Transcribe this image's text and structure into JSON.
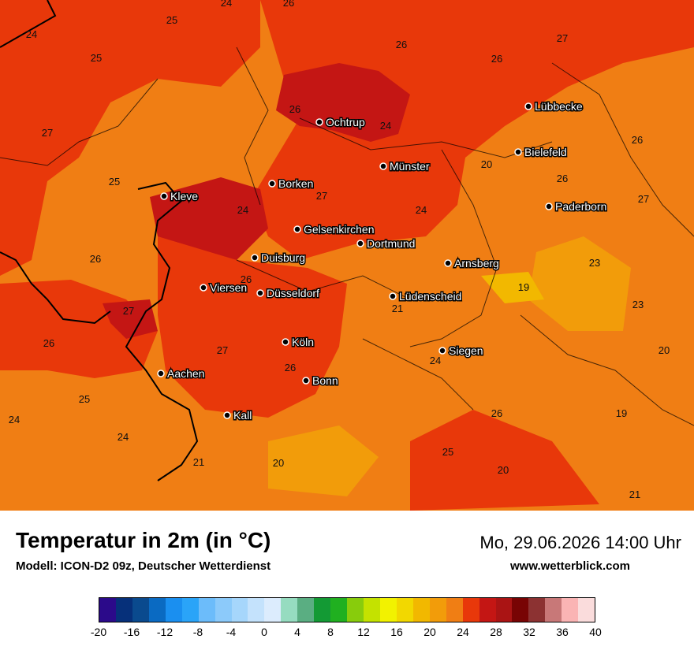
{
  "header": {
    "title": "Temperatur in 2m (in °C)",
    "model": "Modell: ICON-D2 09z, Deutscher Wetterdienst",
    "datetime": "Mo, 29.06.2026 14:00 Uhr",
    "website": "www.wetterblick.com"
  },
  "map": {
    "cities": [
      {
        "name": "Ochtrup"
      },
      {
        "name": "Lübbecke"
      },
      {
        "name": "Bielefeld"
      },
      {
        "name": "Münster"
      },
      {
        "name": "Borken"
      },
      {
        "name": "Kleve"
      },
      {
        "name": "Paderborn"
      },
      {
        "name": "Gelsenkirchen"
      },
      {
        "name": "Dortmund"
      },
      {
        "name": "Duisburg"
      },
      {
        "name": "Arnsberg"
      },
      {
        "name": "Viersen"
      },
      {
        "name": "Düsseldorf"
      },
      {
        "name": "Lüdenscheid"
      },
      {
        "name": "Köln"
      },
      {
        "name": "Siegen"
      },
      {
        "name": "Aachen"
      },
      {
        "name": "Bonn"
      },
      {
        "name": "Kall"
      }
    ],
    "temperature_labels": [
      "24",
      "26",
      "24",
      "25",
      "25",
      "26",
      "27",
      "26",
      "27",
      "26",
      "24",
      "25",
      "20",
      "26",
      "27",
      "24",
      "26",
      "27",
      "24",
      "26",
      "23",
      "26",
      "19",
      "23",
      "27",
      "21",
      "26",
      "27",
      "20",
      "24",
      "26",
      "25",
      "19",
      "24",
      "24",
      "21",
      "20",
      "26",
      "25",
      "20",
      "21"
    ]
  },
  "legend": {
    "unit": "°C",
    "colors": [
      "#2b0a8a",
      "#06307a",
      "#0a4a8e",
      "#0a6ac2",
      "#1a8ff0",
      "#2aa4f8",
      "#6cbcfa",
      "#8ccafa",
      "#a6d6fb",
      "#c4e2fc",
      "#dcecfd",
      "#96dcc0",
      "#5aae82",
      "#139a34",
      "#20b020",
      "#88cc0c",
      "#c4e200",
      "#f2f200",
      "#f2d800",
      "#f2b800",
      "#f29c0a",
      "#f07e14",
      "#e8380a",
      "#c41614",
      "#aa1414",
      "#780404",
      "#8c3232",
      "#c87878",
      "#fab4b4",
      "#fadcdc"
    ],
    "ticks": [
      "-20",
      "-16",
      "-12",
      "-8",
      "-4",
      "0",
      "4",
      "8",
      "12",
      "16",
      "20",
      "24",
      "28",
      "32",
      "36",
      "40"
    ]
  }
}
